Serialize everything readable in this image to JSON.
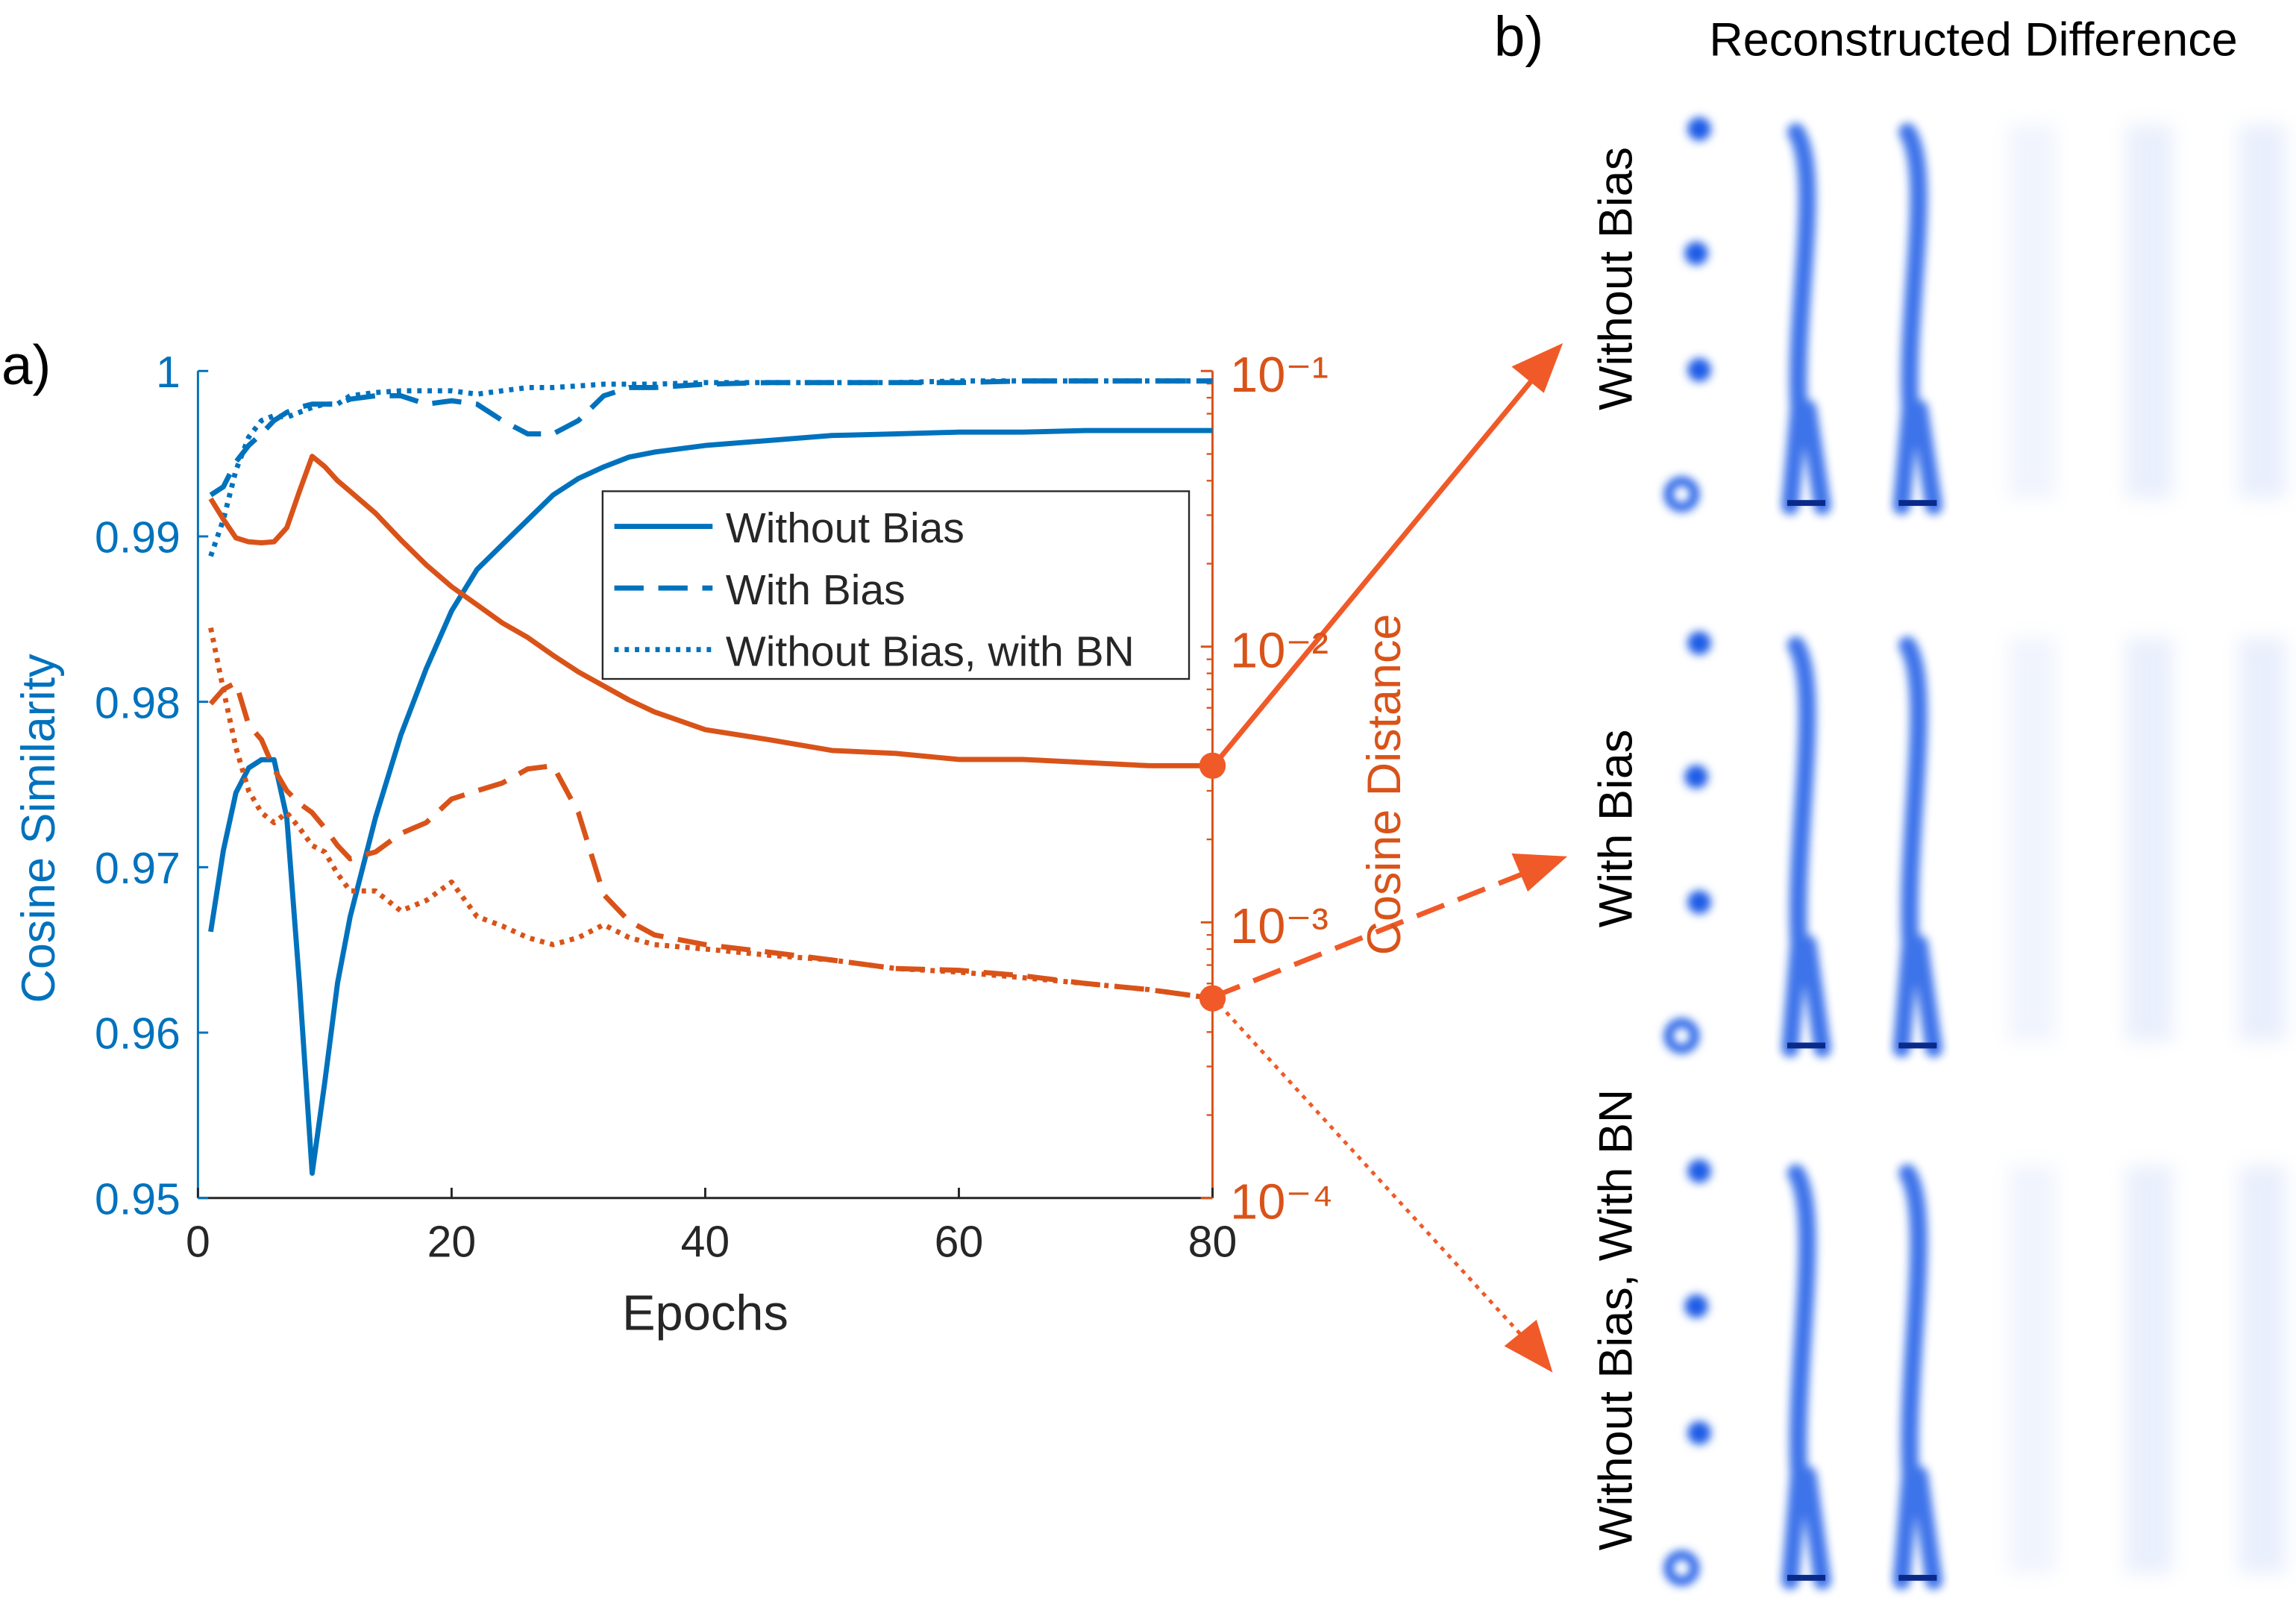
{
  "chart_data": {
    "type": "line",
    "xlabel": "Epochs",
    "ylabel": "Cosine Similarity",
    "y2label": "Cosine Distance",
    "x": [
      1,
      2,
      3,
      4,
      5,
      6,
      7,
      8,
      9,
      10,
      11,
      12,
      14,
      16,
      18,
      20,
      22,
      24,
      26,
      28,
      30,
      32,
      34,
      36,
      40,
      45,
      50,
      55,
      60,
      65,
      70,
      75,
      80
    ],
    "xlim": [
      0,
      80
    ],
    "xticks": [
      0,
      20,
      40,
      60,
      80
    ],
    "ylim": [
      0.95,
      1
    ],
    "yticks": [
      0.95,
      0.96,
      0.97,
      0.98,
      0.99,
      1
    ],
    "y2lim": [
      0.0001,
      0.1
    ],
    "y2log": true,
    "y2ticks": [
      {
        "value": 0.0001,
        "label": "10⁻⁴"
      },
      {
        "value": 0.001,
        "label": "10⁻³"
      },
      {
        "value": 0.01,
        "label": "10⁻²"
      },
      {
        "value": 0.1,
        "label": "10⁻¹"
      }
    ],
    "y_color": "#0072bd",
    "y2_color": "#d95319",
    "legend": "top-right",
    "series": [
      {
        "name": "Without Bias",
        "color": "#0072bd",
        "style": "solid",
        "axis": "y",
        "values": [
          0.9661,
          0.971,
          0.9745,
          0.976,
          0.9765,
          0.9765,
          0.973,
          0.963,
          0.9515,
          0.957,
          0.963,
          0.967,
          0.973,
          0.978,
          0.982,
          0.9855,
          0.988,
          0.9895,
          0.991,
          0.9925,
          0.9935,
          0.9942,
          0.9948,
          0.9951,
          0.9955,
          0.9958,
          0.9961,
          0.9962,
          0.9963,
          0.9963,
          0.9964,
          0.9964,
          0.9964
        ]
      },
      {
        "name": "With Bias",
        "color": "#0072bd",
        "style": "dashed",
        "axis": "y",
        "values": [
          0.9925,
          0.993,
          0.9945,
          0.9955,
          0.9962,
          0.997,
          0.9975,
          0.9978,
          0.998,
          0.998,
          0.998,
          0.9983,
          0.9985,
          0.9985,
          0.998,
          0.9982,
          0.998,
          0.997,
          0.9962,
          0.9962,
          0.997,
          0.9985,
          0.999,
          0.999,
          0.9992,
          0.9993,
          0.9993,
          0.9993,
          0.9993,
          0.9994,
          0.9994,
          0.9994,
          0.9994
        ]
      },
      {
        "name": "Without Bias, with BN",
        "color": "#0072bd",
        "style": "dotted",
        "axis": "y",
        "values": [
          0.9888,
          0.991,
          0.994,
          0.996,
          0.997,
          0.9973,
          0.9972,
          0.9975,
          0.9978,
          0.998,
          0.998,
          0.9985,
          0.9987,
          0.9988,
          0.9988,
          0.9988,
          0.9986,
          0.9988,
          0.999,
          0.999,
          0.9991,
          0.9992,
          0.9992,
          0.9992,
          0.9993,
          0.9993,
          0.9993,
          0.9993,
          0.9994,
          0.9994,
          0.9994,
          0.9994,
          0.9994
        ]
      },
      {
        "color": "#d95319",
        "style": "solid",
        "axis": "y2",
        "values": [
          0.0344,
          0.029,
          0.0248,
          0.024,
          0.0238,
          0.024,
          0.027,
          0.0366,
          0.049,
          0.045,
          0.04,
          0.0366,
          0.0305,
          0.0244,
          0.0198,
          0.0165,
          0.0142,
          0.0122,
          0.0108,
          0.0093,
          0.0081,
          0.0072,
          0.0064,
          0.0058,
          0.005,
          0.0046,
          0.0042,
          0.0041,
          0.0039,
          0.0039,
          0.0038,
          0.0037,
          0.0037
        ]
      },
      {
        "color": "#d95319",
        "style": "dashed",
        "axis": "y2",
        "values": [
          0.0062,
          0.007,
          0.0074,
          0.0052,
          0.0046,
          0.0036,
          0.003,
          0.0027,
          0.0025,
          0.0022,
          0.0019,
          0.0017,
          0.0018,
          0.0021,
          0.0023,
          0.0028,
          0.003,
          0.0032,
          0.0036,
          0.0037,
          0.0025,
          0.00126,
          0.00101,
          0.0009,
          0.00083,
          0.00078,
          0.00073,
          0.00068,
          0.00067,
          0.00064,
          0.0006,
          0.00057,
          0.00053
        ]
      },
      {
        "color": "#d95319",
        "style": "dotted",
        "axis": "y2",
        "values": [
          0.0117,
          0.007,
          0.0043,
          0.003,
          0.0025,
          0.0023,
          0.0025,
          0.0022,
          0.0019,
          0.0018,
          0.0015,
          0.0013,
          0.0013,
          0.0011,
          0.0012,
          0.0014,
          0.00105,
          0.00097,
          0.00088,
          0.00083,
          0.00088,
          0.00098,
          0.00088,
          0.00083,
          0.0008,
          0.00076,
          0.00073,
          0.00068,
          0.00066,
          0.00063,
          0.0006,
          0.00057,
          0.00053
        ]
      }
    ]
  },
  "figure": {
    "panel_a": "a)",
    "panel_b": "b)",
    "image_title": "Reconstructed Difference",
    "rows": [
      "Without Bias",
      "With Bias",
      "Without Bias, With BN"
    ]
  }
}
